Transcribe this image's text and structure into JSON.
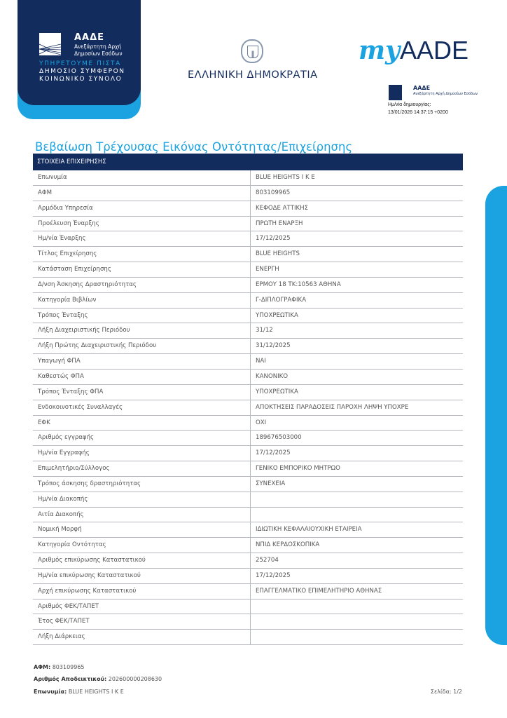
{
  "header": {
    "aade_logo": {
      "name": "ΑΑΔΕ",
      "subtitle": "Ανεξάρτητη Αρχή Δημοσίων Εσόδων"
    },
    "motto": [
      "ΥΠΗΡΕΤΟΥΜΕ ΠΙΣΤΑ",
      "ΔΗΜΟΣΙΟ ΣΥΜΦΕΡΟΝ",
      "ΚΟΙΝΩΝΙΚΟ ΣΥΝΟΛΟ"
    ],
    "republic": "ΕΛΛΗΝΙΚΗ ΔΗΜΟΚΡΑΤΙΑ",
    "myaade": {
      "my": "my",
      "aade": "AADE"
    },
    "small_logo": {
      "name": "ΑΑΔΕ",
      "subtitle": "Ανεξάρτητη Αρχή Δημοσίων Εσόδων"
    },
    "created_label": "Ημ/νία δημιουργίας:",
    "created_value": "13/01/2026 14:37:15 +0200"
  },
  "colors": {
    "navy": "#132c5e",
    "accent": "#1aa3e0"
  },
  "title": "Βεβαίωση Τρέχουσας Εικόνας Οντότητας/Επιχείρησης",
  "section_header": "ΣΤΟΙΧΕΙΑ ΕΠΙΧΕΙΡΗΣΗΣ",
  "rows": [
    {
      "label": "Επωνυμία",
      "value": "BLUE HEIGHTS I K E"
    },
    {
      "label": "ΑΦΜ",
      "value": "803109965"
    },
    {
      "label": "Αρμόδια Υπηρεσία",
      "value": "ΚΕΦΟΔΕ ΑΤΤΙΚΗΣ"
    },
    {
      "label": "Προέλευση Έναρξης",
      "value": "ΠΡΩΤΗ ΕΝΑΡΞΗ"
    },
    {
      "label": "Ημ/νία Έναρξης",
      "value": "17/12/2025"
    },
    {
      "label": "Τίτλος Επιχείρησης",
      "value": "BLUE HEIGHTS"
    },
    {
      "label": "Κατάσταση Επιχείρησης",
      "value": "ΕΝΕΡΓΗ"
    },
    {
      "label": "Δ/νση Άσκησης Δραστηριότητας",
      "value": "ΕΡΜΟΥ 18 ΤΚ:10563 ΑΘΗΝΑ"
    },
    {
      "label": "Κατηγορία Βιβλίων",
      "value": "Γ-ΔΙΠΛΟΓΡΑΦΙΚΑ"
    },
    {
      "label": "Τρόπος Ένταξης",
      "value": "ΥΠΟΧΡΕΩΤΙΚΑ"
    },
    {
      "label": "Λήξη Διαχειριστικής Περιόδου",
      "value": "31/12"
    },
    {
      "label": "Λήξη Πρώτης Διαχειριστικής Περιόδου",
      "value": "31/12/2025"
    },
    {
      "label": "Υπαγωγή ΦΠΑ",
      "value": "ΝΑΙ"
    },
    {
      "label": "Καθεστώς ΦΠΑ",
      "value": "ΚΑΝΟΝΙΚΟ"
    },
    {
      "label": "Τρόπος Ένταξης ΦΠΑ",
      "value": "ΥΠΟΧΡΕΩΤΙΚΑ"
    },
    {
      "label": "Ενδοκοινοτικές Συναλλαγές",
      "value": "ΑΠΟΚΤΗΣΕΙΣ ΠΑΡΑΔΟΣΕΙΣ ΠΑΡΟΧΗ ΛΗΨΗ ΥΠΟΧΡΕ"
    },
    {
      "label": "ΕΦΚ",
      "value": "ΟΧΙ"
    },
    {
      "label": "Αριθμός εγγραφής",
      "value": "189676503000"
    },
    {
      "label": "Ημ/νία Εγγραφής",
      "value": "17/12/2025"
    },
    {
      "label": "Επιμελητήριο/Σύλλογος",
      "value": "ΓΕΝΙΚΟ ΕΜΠΟΡΙΚΟ ΜΗΤΡΩΟ"
    },
    {
      "label": "Τρόπος άσκησης δραστηριότητας",
      "value": "ΣΥΝΕΧΕΙΑ"
    },
    {
      "label": "Ημ/νία Διακοπής",
      "value": ""
    },
    {
      "label": "Αιτία Διακοπής",
      "value": ""
    },
    {
      "label": "Νομική Μορφή",
      "value": "ΙΔΙΩΤΙΚΗ ΚΕΦΑΛΑΙΟΥΧΙΚΗ ΕΤΑΙΡΕΙΑ"
    },
    {
      "label": "Κατηγορία Οντότητας",
      "value": "ΝΠΙΔ ΚΕΡΔΟΣΚΟΠΙΚΑ"
    },
    {
      "label": "Αριθμός επικύρωσης Καταστατικού",
      "value": "252704"
    },
    {
      "label": "Ημ/νία επικύρωσης Καταστατικού",
      "value": "17/12/2025"
    },
    {
      "label": "Αρχή επικύρωσης Καταστατικού",
      "value": "ΕΠΑΓΓΕΛΜΑΤΙΚΟ ΕΠΙΜΕΛΗΤΗΡΙΟ  ΑΘΗΝΑΣ"
    },
    {
      "label": "Αριθμός ΦΕΚ/ΤΑΠΕΤ",
      "value": ""
    },
    {
      "label": "Έτος ΦΕΚ/ΤΑΠΕΤ",
      "value": ""
    },
    {
      "label": "Λήξη Διάρκειας",
      "value": ""
    }
  ],
  "footer": {
    "afm_label": "ΑΦΜ:",
    "afm_value": "803109965",
    "receipt_label": "Αριθμός Αποδεικτικού:",
    "receipt_value": "202600000208630",
    "name_label": "Επωνυμία:",
    "name_value": "BLUE HEIGHTS I K E",
    "page": "Σελίδα: 1/2"
  }
}
